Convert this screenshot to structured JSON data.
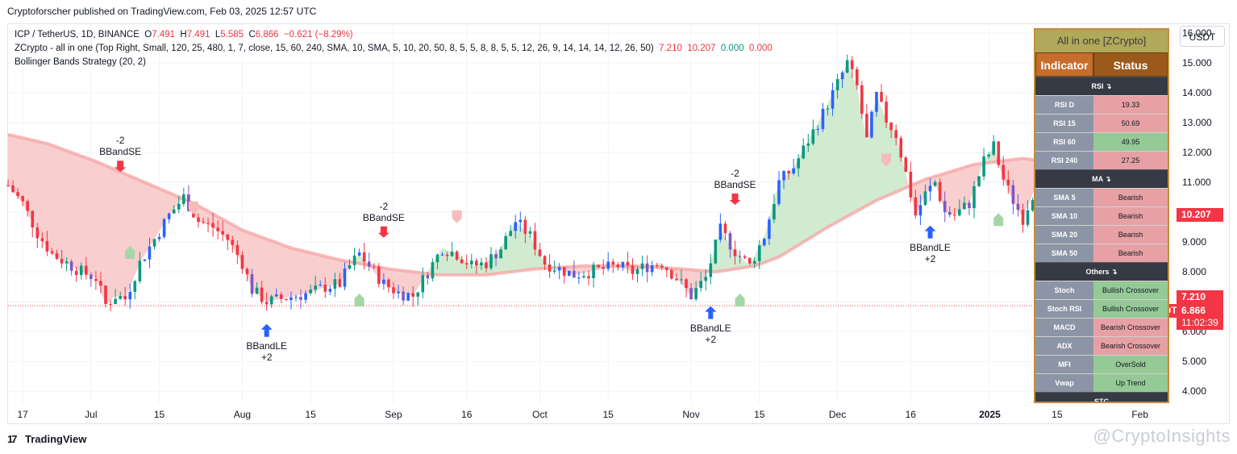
{
  "header": {
    "publisher_line": "Cryptoforscher published on TradingView.com, Feb 03, 2025 12:57 UTC"
  },
  "legend": {
    "line1_prefix": "ICP / TetherUS, 1D, BINANCE",
    "o_label": "O",
    "o_value": "7.491",
    "h_label": "H",
    "h_value": "7.491",
    "l_label": "L",
    "l_value": "5.585",
    "c_label": "C",
    "c_value": "6.866",
    "change": "−0.621 (−8.29%)",
    "line2_prefix": "ZCrypto - all in one (Top Right, Small, 120, 25, 480, 1, 7, close, 15, 60, 240, SMA, 10, SMA, 5, 10, 20, 50, 8, 5, 5, 8, 8, 5, 5, 12, 26, 9, 14, 14, 14, 12, 26, 50)",
    "line2_v1": "7.210",
    "line2_v2": "10.207",
    "line2_v3": "0.000",
    "line2_v4": "0.000",
    "line3": "Bollinger Bands Strategy (20, 2)"
  },
  "currency_button": "USDT",
  "price_tags": {
    "ma": "10.207",
    "upper": "7.210",
    "symbol": "ICPUSDT",
    "last": "6.866",
    "countdown": "11:02:39"
  },
  "annotations": {
    "se_count": "-2",
    "se_label": "BBandSE",
    "le_count": "+2",
    "le_label": "BBandLE"
  },
  "panel": {
    "title": "All in one [ZCrypto]",
    "col_indicator": "Indicator",
    "col_status": "Status",
    "sections": [
      {
        "name": "RSI ↴",
        "rows": [
          {
            "name": "RSI D",
            "value": "19.33",
            "tone": "bear"
          },
          {
            "name": "RSI 15",
            "value": "50.69",
            "tone": "bear"
          },
          {
            "name": "RSI 60",
            "value": "49.95",
            "tone": "bull"
          },
          {
            "name": "RSI 240",
            "value": "27.25",
            "tone": "bear"
          }
        ]
      },
      {
        "name": "MA ↴",
        "rows": [
          {
            "name": "SMA 5",
            "value": "Bearish",
            "tone": "bear"
          },
          {
            "name": "SMA 10",
            "value": "Bearish",
            "tone": "bear"
          },
          {
            "name": "SMA 20",
            "value": "Bearish",
            "tone": "bear"
          },
          {
            "name": "SMA 50",
            "value": "Bearish",
            "tone": "bear"
          }
        ]
      },
      {
        "name": "Others ↴",
        "rows": [
          {
            "name": "Stoch",
            "value": "Bullish Crossover",
            "tone": "bull"
          },
          {
            "name": "Stoch RSI",
            "value": "Bullish Crossover",
            "tone": "bull"
          },
          {
            "name": "MACD",
            "value": "Bearish Crossover",
            "tone": "bear"
          },
          {
            "name": "ADX",
            "value": "Bearish Crossover",
            "tone": "bear"
          },
          {
            "name": "MFI",
            "value": "OverSold",
            "tone": "bull"
          },
          {
            "name": "Vwap",
            "value": "Up Trend",
            "tone": "bull"
          }
        ]
      },
      {
        "name": "STC",
        "rows": []
      }
    ]
  },
  "footer": {
    "brand": "TradingView",
    "watermark": "@CryptoInsights"
  },
  "colors": {
    "up": "#089981",
    "down": "#f23645",
    "upper_band": "#f7a8a8",
    "fill_bear": "#f8c6c6",
    "fill_bull": "#c9e8c9",
    "candle_up_blue": "#2962ff",
    "candle_purple": "#7e57c2"
  },
  "chart_data": {
    "type": "candlestick",
    "symbol": "ICP / TetherUS",
    "interval": "1D",
    "y_ticks": [
      4.0,
      5.0,
      6.0,
      7.0,
      8.0,
      9.0,
      10.0,
      11.0,
      12.0,
      13.0,
      14.0,
      15.0,
      16.0
    ],
    "y_tick_labels": [
      "4.000",
      "5.000",
      "6.000",
      "7.000",
      "8.000",
      "9.000",
      "10.000",
      "11.000",
      "12.000",
      "13.000",
      "14.000",
      "15.000",
      "16.000"
    ],
    "ylim": [
      3.6,
      16.3
    ],
    "x_ticks": [
      {
        "label": "17",
        "day": 0
      },
      {
        "label": "Jul",
        "day": 14
      },
      {
        "label": "15",
        "day": 28
      },
      {
        "label": "Aug",
        "day": 45
      },
      {
        "label": "15",
        "day": 59
      },
      {
        "label": "Sep",
        "day": 76
      },
      {
        "label": "16",
        "day": 91
      },
      {
        "label": "Oct",
        "day": 106
      },
      {
        "label": "15",
        "day": 120
      },
      {
        "label": "Nov",
        "day": 137
      },
      {
        "label": "15",
        "day": 151
      },
      {
        "label": "Dec",
        "day": 167
      },
      {
        "label": "16",
        "day": 182
      },
      {
        "label": "2025",
        "day": 198
      },
      {
        "label": "15",
        "day": 212
      },
      {
        "label": "Feb",
        "day": 229
      }
    ],
    "day_range": [
      -3,
      235
    ],
    "close_series": [
      [
        -3,
        10.9
      ],
      [
        0,
        10.3
      ],
      [
        3,
        9.3
      ],
      [
        6,
        8.6
      ],
      [
        9,
        8.3
      ],
      [
        12,
        8.0
      ],
      [
        15,
        7.8
      ],
      [
        17,
        6.9
      ],
      [
        19,
        7.2
      ],
      [
        21,
        7.1
      ],
      [
        24,
        8.3
      ],
      [
        27,
        9.1
      ],
      [
        30,
        9.9
      ],
      [
        33,
        10.5
      ],
      [
        36,
        9.7
      ],
      [
        39,
        9.5
      ],
      [
        42,
        9.1
      ],
      [
        45,
        8.3
      ],
      [
        47,
        7.4
      ],
      [
        50,
        7.0
      ],
      [
        53,
        7.1
      ],
      [
        56,
        7.2
      ],
      [
        59,
        7.3
      ],
      [
        62,
        7.5
      ],
      [
        65,
        7.6
      ],
      [
        67,
        8.2
      ],
      [
        69,
        8.6
      ],
      [
        71,
        8.2
      ],
      [
        74,
        7.6
      ],
      [
        77,
        7.3
      ],
      [
        80,
        7.2
      ],
      [
        83,
        8.0
      ],
      [
        86,
        8.8
      ],
      [
        89,
        8.6
      ],
      [
        92,
        8.2
      ],
      [
        95,
        8.3
      ],
      [
        98,
        8.8
      ],
      [
        101,
        9.7
      ],
      [
        104,
        9.2
      ],
      [
        107,
        8.3
      ],
      [
        110,
        8.1
      ],
      [
        113,
        7.9
      ],
      [
        116,
        8.0
      ],
      [
        119,
        8.1
      ],
      [
        122,
        8.2
      ],
      [
        125,
        8.0
      ],
      [
        128,
        8.2
      ],
      [
        131,
        8.3
      ],
      [
        134,
        7.8
      ],
      [
        137,
        7.2
      ],
      [
        140,
        7.8
      ],
      [
        143,
        9.4
      ],
      [
        146,
        8.7
      ],
      [
        149,
        8.2
      ],
      [
        152,
        9.2
      ],
      [
        155,
        11.0
      ],
      [
        158,
        11.5
      ],
      [
        161,
        12.4
      ],
      [
        164,
        13.3
      ],
      [
        167,
        14.3
      ],
      [
        169,
        15.0
      ],
      [
        171,
        14.2
      ],
      [
        173,
        12.4
      ],
      [
        175,
        13.9
      ],
      [
        177,
        13.1
      ],
      [
        179,
        12.6
      ],
      [
        181,
        11.3
      ],
      [
        183,
        9.9
      ],
      [
        185,
        10.6
      ],
      [
        187,
        11.0
      ],
      [
        189,
        10.0
      ],
      [
        191,
        9.9
      ],
      [
        194,
        10.3
      ],
      [
        197,
        11.7
      ],
      [
        199,
        12.2
      ],
      [
        201,
        11.1
      ],
      [
        203,
        10.4
      ],
      [
        205,
        9.8
      ],
      [
        207,
        10.6
      ],
      [
        209,
        11.3
      ],
      [
        211,
        10.3
      ],
      [
        213,
        9.5
      ],
      [
        215,
        9.2
      ],
      [
        217,
        9.0
      ],
      [
        219,
        8.9
      ],
      [
        221,
        8.7
      ],
      [
        223,
        8.5
      ],
      [
        225,
        8.8
      ],
      [
        227,
        7.5
      ],
      [
        229,
        6.9
      ]
    ],
    "upper_band_series": [
      [
        -3,
        12.6
      ],
      [
        5,
        12.3
      ],
      [
        15,
        11.7
      ],
      [
        25,
        11.0
      ],
      [
        35,
        10.3
      ],
      [
        45,
        9.4
      ],
      [
        55,
        8.8
      ],
      [
        65,
        8.4
      ],
      [
        75,
        8.1
      ],
      [
        85,
        7.9
      ],
      [
        95,
        7.9
      ],
      [
        105,
        8.1
      ],
      [
        115,
        8.2
      ],
      [
        125,
        8.2
      ],
      [
        135,
        8.1
      ],
      [
        142,
        8.0
      ],
      [
        150,
        8.2
      ],
      [
        155,
        8.5
      ],
      [
        165,
        9.5
      ],
      [
        175,
        10.4
      ],
      [
        185,
        11.1
      ],
      [
        195,
        11.6
      ],
      [
        205,
        11.8
      ],
      [
        215,
        11.6
      ],
      [
        225,
        11.5
      ],
      [
        233,
        11.4
      ]
    ],
    "events": [
      {
        "type": "short",
        "label": "BBandSE",
        "qty": "-2",
        "day": 20,
        "price": 11.4
      },
      {
        "type": "short",
        "label": "BBandSE",
        "qty": "-2",
        "day": 74,
        "price": 9.2
      },
      {
        "type": "short",
        "label": "BBandSE",
        "qty": "-2",
        "day": 146,
        "price": 10.3
      },
      {
        "type": "long",
        "label": "BBandLE",
        "qty": "+2",
        "day": 50,
        "price": 6.2
      },
      {
        "type": "long",
        "label": "BBandLE",
        "qty": "+2",
        "day": 141,
        "price": 6.8
      },
      {
        "type": "long",
        "label": "BBandLE",
        "qty": "+2",
        "day": 186,
        "price": 9.5
      }
    ],
    "last_price": 6.866
  }
}
